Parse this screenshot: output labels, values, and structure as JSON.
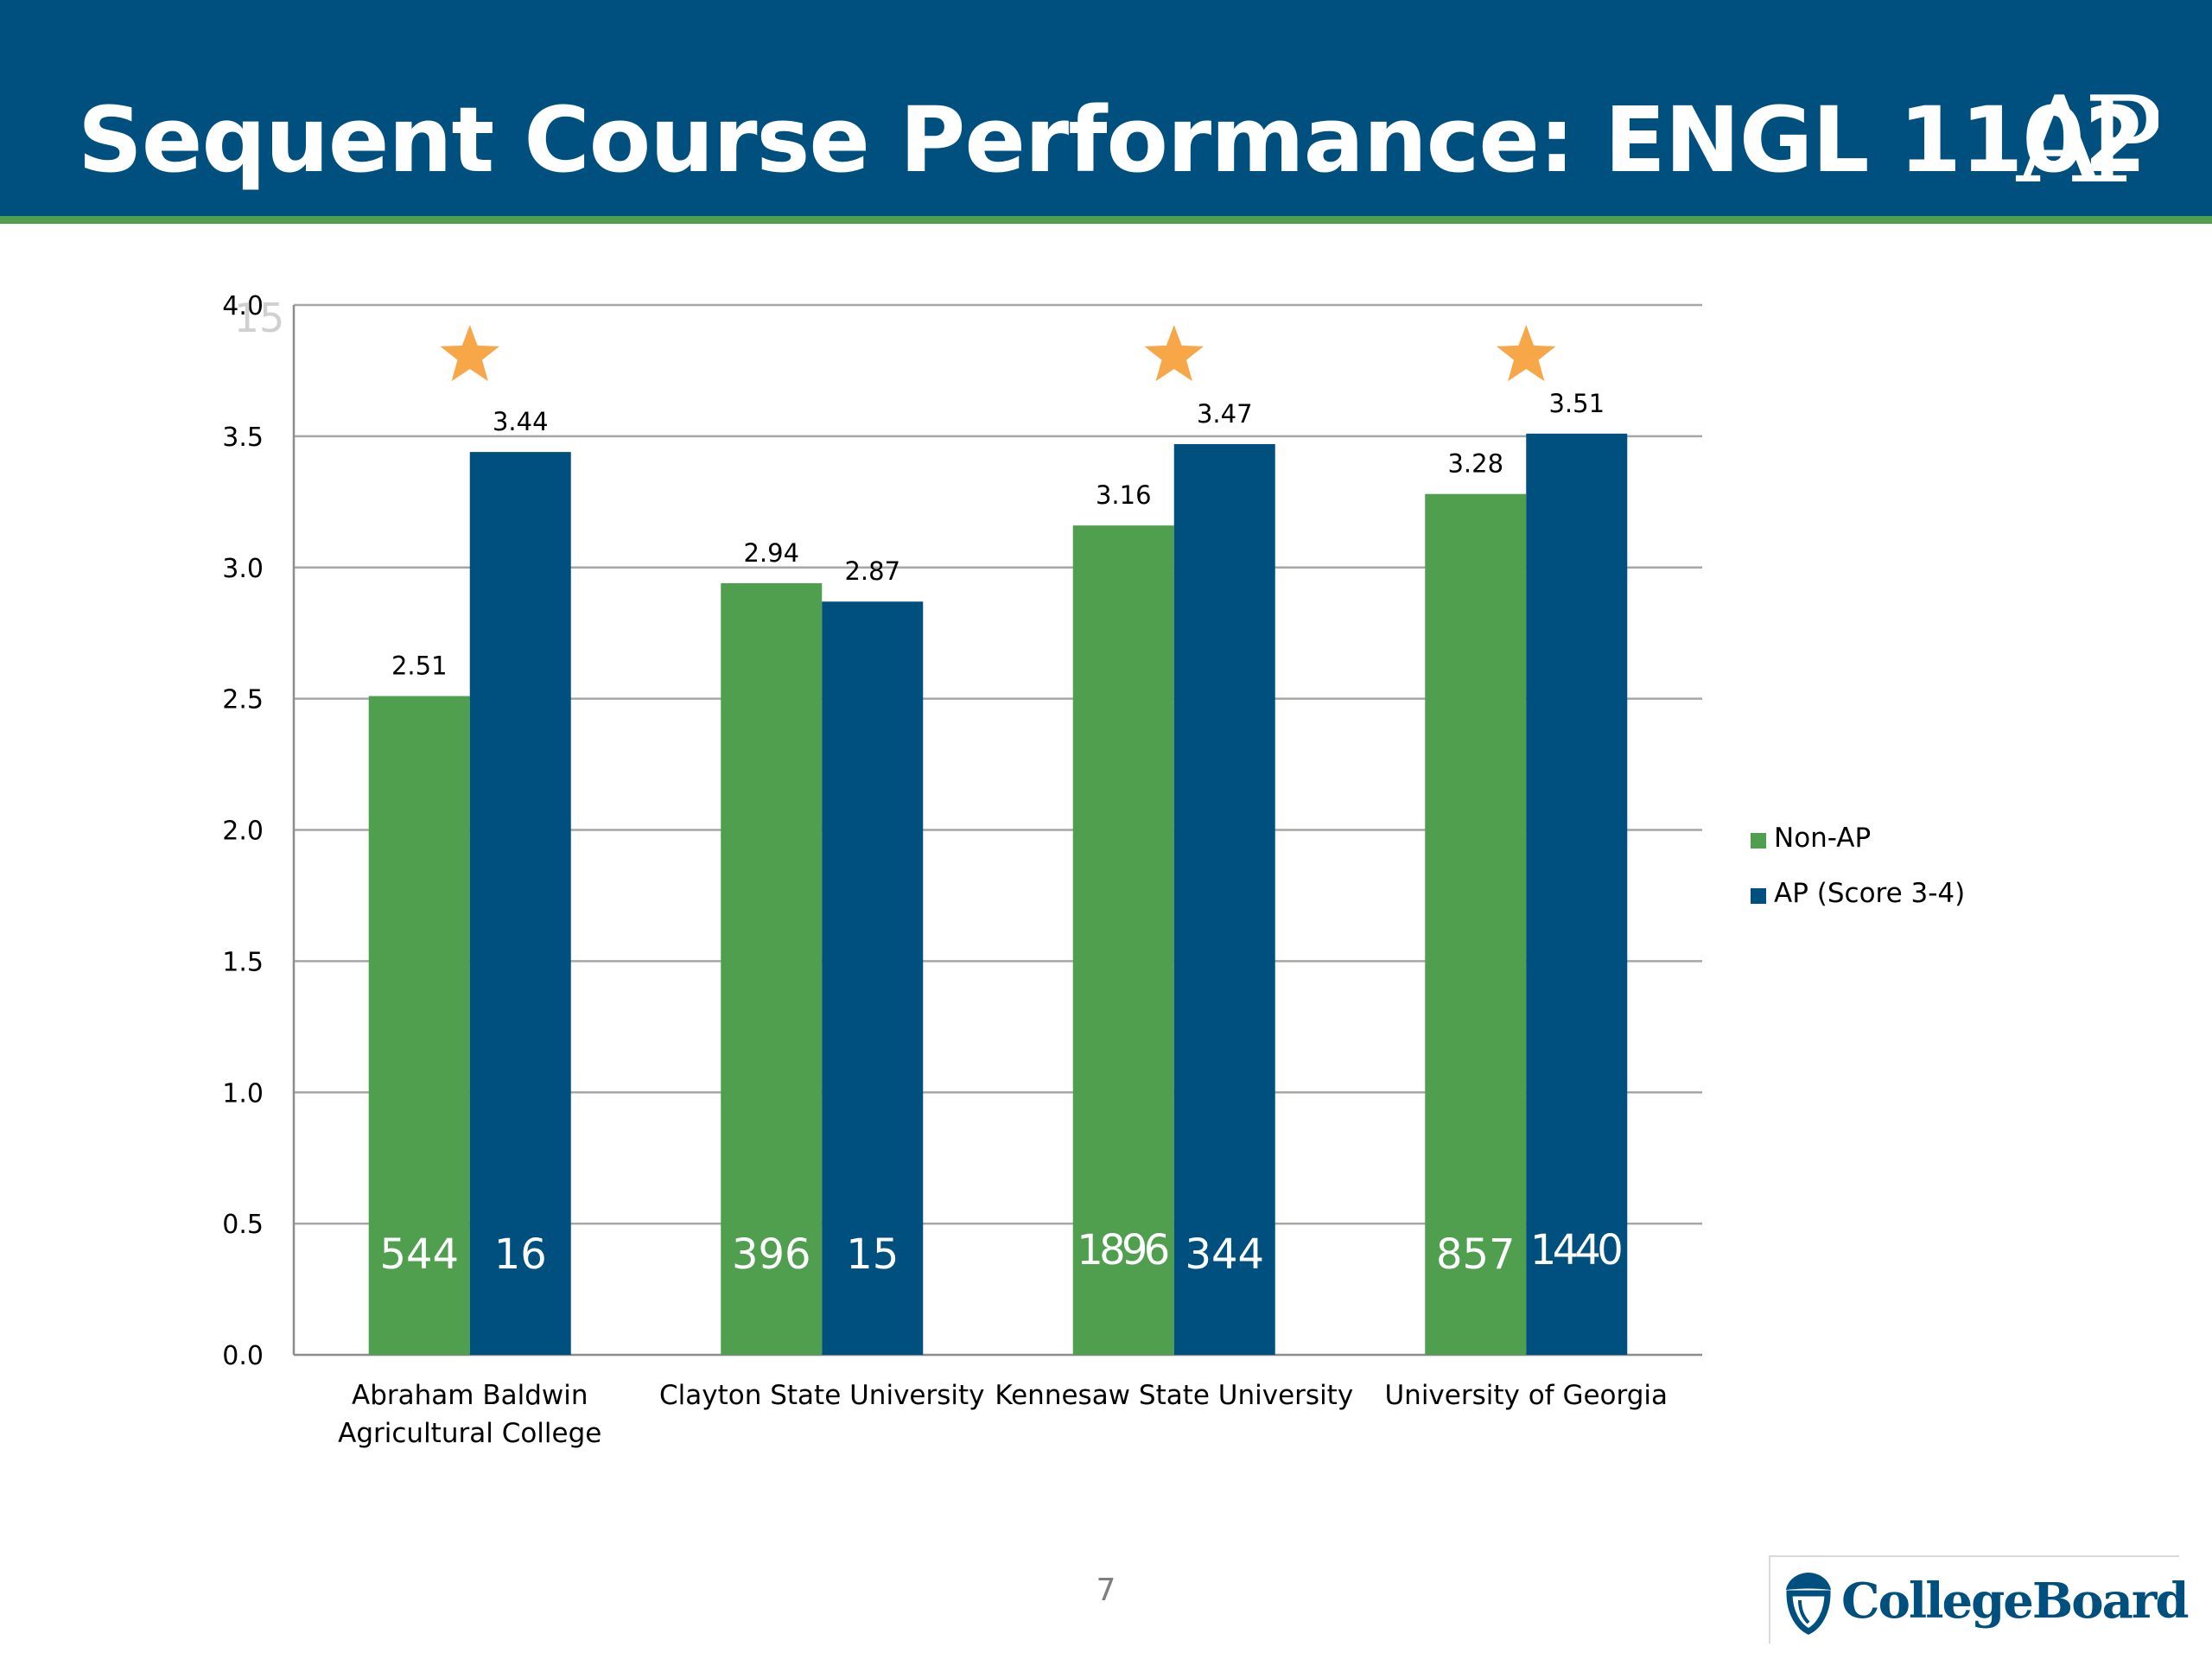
{
  "slide": {
    "title": "Sequent Course Performance: ENGL 1102",
    "logo_text": "AP",
    "page_number": "7",
    "footer_logo_text": "CollegeBoard",
    "colors": {
      "header_bg": "#00507f",
      "header_stripe": "#4f9f4f",
      "star": "#f7a648"
    }
  },
  "chart_data": {
    "type": "bar",
    "title": "",
    "xlabel": "",
    "ylabel": "",
    "ylim": [
      0,
      4.0
    ],
    "y_ticks": [
      "0.0",
      "0.5",
      "1.0",
      "1.5",
      "2.0",
      "2.5",
      "3.0",
      "3.5",
      "4.0"
    ],
    "grid": true,
    "legend_position": "right",
    "corner_label": "15",
    "categories": [
      [
        "Abraham Baldwin",
        "Agricultural College"
      ],
      [
        "Clayton State University"
      ],
      [
        "Kennesaw State University"
      ],
      [
        "University of Georgia"
      ]
    ],
    "series": [
      {
        "name": "Non-AP",
        "color": "#4f9f4f",
        "values": [
          2.51,
          2.94,
          3.16,
          3.28
        ],
        "value_labels": [
          "2.51",
          "2.94",
          "3.16",
          "3.28"
        ],
        "counts": [
          "544",
          "396",
          "1896",
          "857"
        ]
      },
      {
        "name": "AP (Score 3-4)",
        "color": "#00507f",
        "values": [
          3.44,
          2.87,
          3.47,
          3.51
        ],
        "value_labels": [
          "3.44",
          "2.87",
          "3.47",
          "3.51"
        ],
        "counts": [
          "16",
          "15",
          "344",
          "1440"
        ]
      }
    ],
    "stars": [
      true,
      false,
      true,
      true
    ]
  }
}
